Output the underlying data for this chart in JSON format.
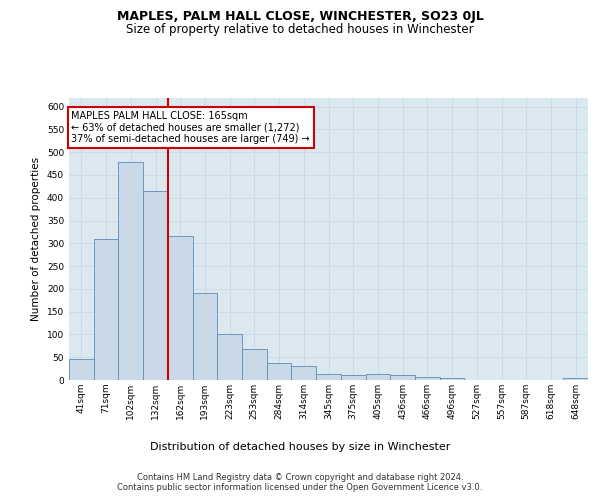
{
  "title": "MAPLES, PALM HALL CLOSE, WINCHESTER, SO23 0JL",
  "subtitle": "Size of property relative to detached houses in Winchester",
  "xlabel": "Distribution of detached houses by size in Winchester",
  "ylabel": "Number of detached properties",
  "categories": [
    "41sqm",
    "71sqm",
    "102sqm",
    "132sqm",
    "162sqm",
    "193sqm",
    "223sqm",
    "253sqm",
    "284sqm",
    "314sqm",
    "345sqm",
    "375sqm",
    "405sqm",
    "436sqm",
    "466sqm",
    "496sqm",
    "527sqm",
    "557sqm",
    "587sqm",
    "618sqm",
    "648sqm"
  ],
  "values": [
    47,
    310,
    478,
    415,
    315,
    190,
    102,
    68,
    38,
    30,
    13,
    10,
    13,
    12,
    7,
    4,
    1,
    0,
    0,
    1,
    4
  ],
  "bar_color": "#c9d9e8",
  "bar_edge_color": "#5b8db8",
  "vline_x_pos": 3.5,
  "vline_color": "#cc0000",
  "annotation_line1": "MAPLES PALM HALL CLOSE: 165sqm",
  "annotation_line2": "← 63% of detached houses are smaller (1,272)",
  "annotation_line3": "37% of semi-detached houses are larger (749) →",
  "annotation_box_edge_color": "#cc0000",
  "annotation_box_face_color": "#ffffff",
  "ylim": [
    0,
    620
  ],
  "yticks": [
    0,
    50,
    100,
    150,
    200,
    250,
    300,
    350,
    400,
    450,
    500,
    550,
    600
  ],
  "grid_color": "#c8d8e8",
  "plot_bg_color": "#dce8f0",
  "fig_bg_color": "#ffffff",
  "footer_line1": "Contains HM Land Registry data © Crown copyright and database right 2024.",
  "footer_line2": "Contains public sector information licensed under the Open Government Licence v3.0.",
  "title_fontsize": 9,
  "subtitle_fontsize": 8.5,
  "xlabel_fontsize": 8,
  "ylabel_fontsize": 7.5,
  "tick_fontsize": 6.5,
  "annotation_fontsize": 7,
  "footer_fontsize": 6
}
